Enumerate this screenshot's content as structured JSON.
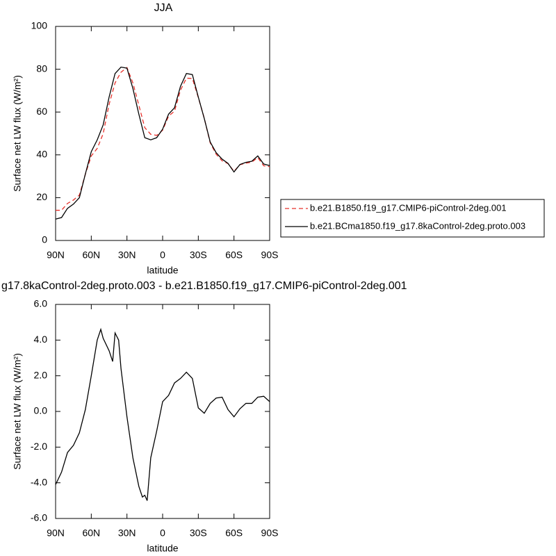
{
  "chart_data": [
    {
      "type": "line",
      "title": "JJA",
      "xlabel": "latitude",
      "ylabel": "Surface net LW flux (W/m²)",
      "x": [
        90,
        85,
        80,
        75,
        70,
        65,
        60,
        55,
        50,
        45,
        40,
        35,
        30,
        25,
        20,
        15,
        10,
        5,
        0,
        -5,
        -10,
        -15,
        -20,
        -25,
        -30,
        -35,
        -40,
        -45,
        -50,
        -55,
        -60,
        -65,
        -70,
        -75,
        -80,
        -85,
        -90
      ],
      "series": [
        {
          "name": "b.e21.B1850.f19_g17.CMIP6-piControl-2deg.001",
          "color": "#e8302a",
          "dash": "dashed",
          "values": [
            14.1,
            14.1,
            17.3,
            18.9,
            21.2,
            30.9,
            39.5,
            43,
            49.9,
            63.6,
            73.6,
            78.6,
            80.8,
            73.6,
            63.2,
            52.7,
            49.6,
            49.1,
            51.5,
            58.1,
            60.4,
            70.2,
            75.8,
            75.7,
            66.8,
            57.1,
            45.6,
            40.3,
            37.2,
            35.9,
            32.3,
            35.4,
            36.1,
            36.6,
            38.7,
            34.9,
            34.5
          ]
        },
        {
          "name": "b.e21.BCma1850.f19_g17.8kaControl-2deg.proto.003",
          "color": "#000000",
          "dash": "solid",
          "values": [
            10,
            10.7,
            15,
            17,
            20,
            31,
            41.5,
            47,
            54,
            67,
            78,
            81,
            80.5,
            71,
            59,
            48,
            47,
            48,
            52,
            59,
            62,
            72,
            78,
            77.5,
            67,
            57,
            46,
            41,
            38,
            36,
            32,
            35.5,
            36.5,
            37,
            39.5,
            35.7,
            35
          ]
        }
      ],
      "xlim": [
        90,
        -90
      ],
      "xticks": [
        {
          "value": 90,
          "label": "90N"
        },
        {
          "value": 60,
          "label": "60N"
        },
        {
          "value": 30,
          "label": "30N"
        },
        0,
        {
          "value": -30,
          "label": "30S"
        },
        {
          "value": -60,
          "label": "60S"
        },
        {
          "value": -90,
          "label": "90S"
        }
      ],
      "ylim": [
        0,
        100
      ],
      "yticks": [
        0,
        20,
        40,
        60,
        80,
        100
      ],
      "legend": "right"
    },
    {
      "type": "line",
      "title": "g17.8kaControl-2deg.proto.003 - b.e21.B1850.f19_g17.CMIP6-piControl-2deg.001",
      "xlabel": "latitude",
      "ylabel": "Surface net LW flux (W/m²)",
      "x": [
        90,
        85,
        80,
        75,
        70,
        65,
        60,
        55,
        52,
        50,
        45,
        42,
        40,
        37,
        35,
        30,
        25,
        20,
        17,
        15,
        13,
        10,
        5,
        0,
        -5,
        -10,
        -15,
        -20,
        -25,
        -30,
        -35,
        -40,
        -45,
        -50,
        -55,
        -60,
        -65,
        -70,
        -75,
        -80,
        -85,
        -90
      ],
      "series": [
        {
          "color": "#000000",
          "dash": "solid",
          "values": [
            -4.1,
            -3.4,
            -2.3,
            -1.9,
            -1.2,
            0.1,
            2.0,
            4.0,
            4.6,
            4.1,
            3.4,
            2.8,
            4.4,
            4.0,
            2.4,
            -0.3,
            -2.6,
            -4.2,
            -4.8,
            -4.7,
            -5.0,
            -2.6,
            -1.1,
            0.55,
            0.9,
            1.6,
            1.85,
            2.2,
            1.85,
            0.2,
            -0.1,
            0.45,
            0.75,
            0.8,
            0.1,
            -0.3,
            0.15,
            0.45,
            0.45,
            0.8,
            0.85,
            0.55
          ]
        }
      ],
      "xlim": [
        90,
        -90
      ],
      "xticks": [
        {
          "value": 90,
          "label": "90N"
        },
        {
          "value": 60,
          "label": "60N"
        },
        {
          "value": 30,
          "label": "30N"
        },
        0,
        {
          "value": -30,
          "label": "30S"
        },
        {
          "value": -60,
          "label": "60S"
        },
        {
          "value": -90,
          "label": "90S"
        }
      ],
      "ylim": [
        -6,
        6
      ],
      "yticks": [
        {
          "value": -6,
          "label": "-6.0"
        },
        {
          "value": -4,
          "label": "-4.0"
        },
        {
          "value": -2,
          "label": "-2.0"
        },
        {
          "value": 0,
          "label": "0.0"
        },
        {
          "value": 2,
          "label": "2.0"
        },
        {
          "value": 4,
          "label": "4.0"
        },
        {
          "value": 6,
          "label": "6.0"
        }
      ]
    }
  ]
}
